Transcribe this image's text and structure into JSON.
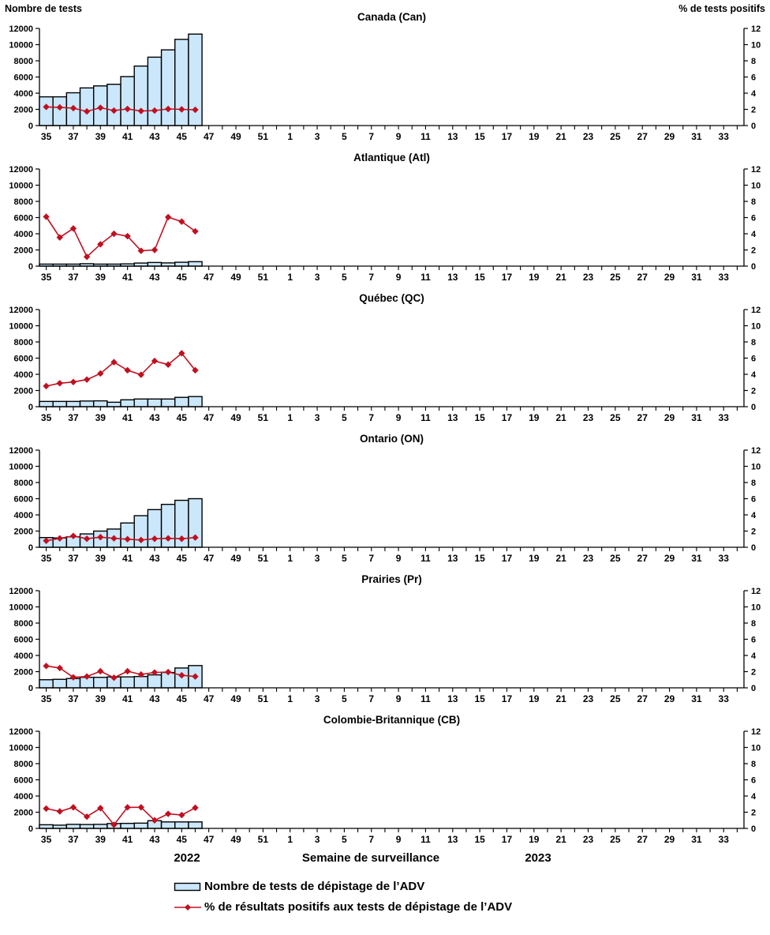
{
  "header": {
    "left_axis_title": "Nombre de tests",
    "right_axis_title": "% de tests positifs"
  },
  "footer": {
    "year_left": "2022",
    "axis_title": "Semaine de surveillance",
    "year_right": "2023"
  },
  "legend": {
    "bar_label": "Nombre de tests de dépistage de l’ADV",
    "line_label": "% de résultats positifs aux tests de dépistage de l’ADV"
  },
  "colors": {
    "bar_fill": "#CBE7FB",
    "bar_stroke": "#000000",
    "line": "#C01020",
    "axis": "#000000"
  },
  "axes": {
    "y_left_label": "Nombre de tests",
    "y_right_label": "% de tests positifs",
    "y_left_ticks": [
      0,
      2000,
      4000,
      6000,
      8000,
      10000,
      12000
    ],
    "y_right_ticks": [
      0,
      2,
      4,
      6,
      8,
      10,
      12
    ],
    "y_left_range": [
      0,
      12000
    ],
    "y_right_range": [
      0,
      12
    ],
    "x_all_weeks": [
      35,
      36,
      37,
      38,
      39,
      40,
      41,
      42,
      43,
      44,
      45,
      46,
      47,
      48,
      49,
      50,
      51,
      52,
      1,
      2,
      3,
      4,
      5,
      6,
      7,
      8,
      9,
      10,
      11,
      12,
      13,
      14,
      15,
      16,
      17,
      18,
      19,
      20,
      21,
      22,
      23,
      24,
      25,
      26,
      27,
      28,
      29,
      30,
      31,
      32,
      33,
      34
    ],
    "x_labeled_weeks": [
      35,
      37,
      39,
      41,
      43,
      45,
      47,
      49,
      51,
      1,
      3,
      5,
      7,
      9,
      11,
      13,
      15,
      17,
      19,
      21,
      23,
      25,
      27,
      29,
      31,
      33
    ]
  },
  "chart_data": [
    {
      "type": "bar+line",
      "title": "Canada (Can)",
      "x": [
        35,
        36,
        37,
        38,
        39,
        40,
        41,
        42,
        43,
        44,
        45,
        46
      ],
      "series": [
        {
          "name": "Nombre de tests",
          "axis": "left",
          "values": [
            3550,
            3550,
            4050,
            4650,
            4900,
            5100,
            6050,
            7350,
            8450,
            9350,
            10650,
            11300
          ]
        },
        {
          "name": "% de tests positifs",
          "axis": "right",
          "values": [
            2.3,
            2.25,
            2.15,
            1.75,
            2.2,
            1.85,
            2.05,
            1.8,
            1.85,
            2.05,
            2.0,
            1.95
          ]
        }
      ]
    },
    {
      "type": "bar+line",
      "title": "Atlantique (Atl)",
      "x": [
        35,
        36,
        37,
        38,
        39,
        40,
        41,
        42,
        43,
        44,
        45,
        46
      ],
      "series": [
        {
          "name": "Nombre de tests",
          "axis": "left",
          "values": [
            250,
            250,
            250,
            300,
            250,
            250,
            280,
            380,
            450,
            400,
            480,
            550
          ]
        },
        {
          "name": "% de tests positifs",
          "axis": "right",
          "values": [
            6.1,
            3.55,
            4.65,
            1.15,
            2.7,
            4.0,
            3.7,
            1.9,
            2.0,
            6.05,
            5.5,
            4.3
          ]
        }
      ]
    },
    {
      "type": "bar+line",
      "title": "Québec (QC)",
      "x": [
        35,
        36,
        37,
        38,
        39,
        40,
        41,
        42,
        43,
        44,
        45,
        46
      ],
      "series": [
        {
          "name": "Nombre de tests",
          "axis": "left",
          "values": [
            650,
            650,
            650,
            700,
            720,
            550,
            850,
            950,
            950,
            950,
            1150,
            1250
          ]
        },
        {
          "name": "% de tests positifs",
          "axis": "right",
          "values": [
            2.55,
            2.9,
            3.05,
            3.35,
            4.1,
            5.5,
            4.5,
            3.95,
            5.65,
            5.2,
            6.6,
            4.5
          ]
        }
      ]
    },
    {
      "type": "bar+line",
      "title": "Ontario (ON)",
      "x": [
        35,
        36,
        37,
        38,
        39,
        40,
        41,
        42,
        43,
        44,
        45,
        46
      ],
      "series": [
        {
          "name": "Nombre de tests",
          "axis": "left",
          "values": [
            1200,
            1150,
            1300,
            1650,
            2000,
            2250,
            3000,
            3900,
            4650,
            5300,
            5800,
            6000
          ]
        },
        {
          "name": "% de tests positifs",
          "axis": "right",
          "values": [
            0.8,
            1.1,
            1.4,
            1.05,
            1.25,
            1.1,
            1.0,
            0.9,
            1.05,
            1.1,
            1.05,
            1.2
          ]
        }
      ]
    },
    {
      "type": "bar+line",
      "title": "Prairies (Pr)",
      "x": [
        35,
        36,
        37,
        38,
        39,
        40,
        41,
        42,
        43,
        44,
        45,
        46
      ],
      "series": [
        {
          "name": "Nombre de tests",
          "axis": "left",
          "values": [
            1000,
            1050,
            1150,
            1300,
            1300,
            1350,
            1350,
            1400,
            1600,
            1900,
            2450,
            2750
          ]
        },
        {
          "name": "% de tests positifs",
          "axis": "right",
          "values": [
            2.7,
            2.45,
            1.3,
            1.4,
            2.05,
            1.25,
            2.05,
            1.65,
            1.9,
            1.95,
            1.55,
            1.4
          ]
        }
      ]
    },
    {
      "type": "bar+line",
      "title": "Colombie-Britannique (CB)",
      "x": [
        35,
        36,
        37,
        38,
        39,
        40,
        41,
        42,
        43,
        44,
        45,
        46
      ],
      "series": [
        {
          "name": "Nombre de tests",
          "axis": "left",
          "values": [
            450,
            400,
            500,
            480,
            500,
            600,
            620,
            650,
            950,
            800,
            800,
            800
          ]
        },
        {
          "name": "% de tests positifs",
          "axis": "right",
          "values": [
            2.45,
            2.1,
            2.6,
            1.45,
            2.5,
            0.45,
            2.6,
            2.6,
            1.0,
            1.8,
            1.65,
            2.55
          ]
        }
      ]
    }
  ]
}
